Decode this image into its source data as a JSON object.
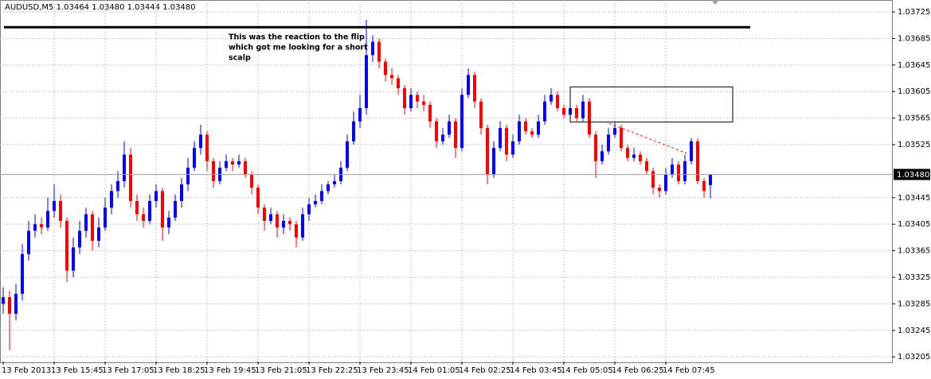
{
  "info": "AUDUSD,M5  1.03464 1.03480 1.03444 1.03480",
  "chart_data": {
    "type": "candlestick",
    "up_color": "#0000ff",
    "down_color": "#ff0000",
    "doji_color": "#00a000",
    "ylim": [
      1.03198,
      1.03743
    ],
    "yticks": [
      1.03725,
      1.03685,
      1.03645,
      1.03605,
      1.03565,
      1.03525,
      1.03445,
      1.03405,
      1.03365,
      1.03325,
      1.03285,
      1.03245,
      1.03205
    ],
    "current_price": {
      "value": 1.0348,
      "label": "1.03480"
    },
    "grid": true,
    "time_labels": [
      "13 Feb 2013",
      "13 Feb 15:45",
      "13 Feb 17:05",
      "13 Feb 18:25",
      "13 Feb 19:45",
      "13 Feb 21:05",
      "13 Feb 22:25",
      "13 Feb 23:45",
      "14 Feb 01:05",
      "14 Feb 02:25",
      "14 Feb 03:45",
      "14 Feb 05:05",
      "14 Feb 06:25",
      "14 Feb 07:45"
    ],
    "annotation": [
      "This was the reaction to the flip",
      "which got me looking for a short",
      "scalp"
    ],
    "horizontal_line": 1.03702,
    "rectangle": {
      "top": 1.03612,
      "bottom": 1.03559
    },
    "trendline": [
      1.03557,
      1.03512
    ],
    "open": [
      1.03285,
      1.03295,
      1.0327,
      1.033,
      1.0336,
      1.03395,
      1.03405,
      1.034,
      1.03425,
      1.0344,
      1.0341,
      1.03335,
      1.0337,
      1.03395,
      1.0342,
      1.0338,
      1.034,
      1.0343,
      1.03455,
      1.0347,
      1.0351,
      1.0344,
      1.0342,
      1.0341,
      1.0344,
      1.03455,
      1.034,
      1.03415,
      1.0344,
      1.03465,
      1.0349,
      1.0352,
      1.0354,
      1.035,
      1.0347,
      1.0349,
      1.035,
      1.03495,
      1.035,
      1.0348,
      1.0346,
      1.0343,
      1.0341,
      1.0342,
      1.034,
      1.0341,
      1.03405,
      1.03385,
      1.0342,
      1.03435,
      1.0344,
      1.03455,
      1.03465,
      1.0347,
      1.0349,
      1.0353,
      1.0356,
      1.0358,
      1.0366,
      1.0368,
      1.0365,
      1.0363,
      1.03625,
      1.0361,
      1.0358,
      1.036,
      1.0359,
      1.03585,
      1.0356,
      1.0353,
      1.0354,
      1.0356,
      1.0352,
      1.036,
      1.0363,
      1.0359,
      1.0355,
      1.0348,
      1.0352,
      1.0355,
      1.0351,
      1.0353,
      1.0356,
      1.03545,
      1.0354,
      1.0356,
      1.0359,
      1.036,
      1.0358,
      1.0357,
      1.0358,
      1.03565,
      1.0359,
      1.0354,
      1.035,
      1.03515,
      1.0354,
      1.0355,
      1.0352,
      1.03505,
      1.0351,
      1.035,
      1.03485,
      1.0346,
      1.03455,
      1.0348,
      1.03495,
      1.0347,
      1.035,
      1.0353,
      1.0347,
      1.03464
    ],
    "high": [
      1.0331,
      1.03305,
      1.03315,
      1.03375,
      1.0341,
      1.0342,
      1.03415,
      1.03445,
      1.03465,
      1.0345,
      1.03415,
      1.03385,
      1.0341,
      1.0343,
      1.03425,
      1.03415,
      1.03445,
      1.03465,
      1.03485,
      1.0353,
      1.0352,
      1.0345,
      1.0343,
      1.0345,
      1.03465,
      1.0346,
      1.03425,
      1.0345,
      1.03475,
      1.03505,
      1.0353,
      1.03555,
      1.03545,
      1.03505,
      1.035,
      1.0351,
      1.03505,
      1.0351,
      1.03505,
      1.03485,
      1.03465,
      1.03435,
      1.0343,
      1.03425,
      1.0342,
      1.03415,
      1.0341,
      1.0343,
      1.03445,
      1.0345,
      1.03465,
      1.0347,
      1.0348,
      1.035,
      1.0354,
      1.03575,
      1.036,
      1.03713,
      1.0369,
      1.03685,
      1.03655,
      1.0364,
      1.0363,
      1.03615,
      1.0361,
      1.03605,
      1.036,
      1.0359,
      1.03565,
      1.0355,
      1.0357,
      1.03565,
      1.0361,
      1.0364,
      1.03635,
      1.03595,
      1.03555,
      1.0353,
      1.0356,
      1.03555,
      1.0354,
      1.0357,
      1.03565,
      1.0355,
      1.0357,
      1.036,
      1.0361,
      1.03605,
      1.03585,
      1.0359,
      1.03585,
      1.036,
      1.03595,
      1.03545,
      1.03525,
      1.0355,
      1.0356,
      1.03555,
      1.03525,
      1.0352,
      1.03515,
      1.03505,
      1.0349,
      1.03465,
      1.0349,
      1.03505,
      1.035,
      1.0351,
      1.03535,
      1.03535,
      1.03475,
      1.0348
    ],
    "low": [
      1.0327,
      1.03215,
      1.0326,
      1.0329,
      1.0335,
      1.03385,
      1.0339,
      1.03395,
      1.03415,
      1.034,
      1.03318,
      1.03325,
      1.0336,
      1.03385,
      1.03365,
      1.0337,
      1.03395,
      1.0342,
      1.03445,
      1.0346,
      1.0343,
      1.0341,
      1.034,
      1.03405,
      1.0343,
      1.0338,
      1.0339,
      1.0341,
      1.0343,
      1.03455,
      1.03485,
      1.0351,
      1.03485,
      1.0346,
      1.03465,
      1.03485,
      1.03485,
      1.0349,
      1.03475,
      1.0345,
      1.0342,
      1.03395,
      1.03405,
      1.03385,
      1.0339,
      1.03395,
      1.0337,
      1.0338,
      1.0341,
      1.0343,
      1.03435,
      1.0345,
      1.0346,
      1.03465,
      1.03485,
      1.03525,
      1.0355,
      1.0357,
      1.0365,
      1.0364,
      1.0362,
      1.03615,
      1.036,
      1.0357,
      1.03575,
      1.0358,
      1.03575,
      1.0355,
      1.0352,
      1.03525,
      1.03535,
      1.03505,
      1.03515,
      1.03595,
      1.0358,
      1.0354,
      1.03465,
      1.03475,
      1.03515,
      1.035,
      1.03505,
      1.03525,
      1.0354,
      1.03535,
      1.03535,
      1.03555,
      1.03585,
      1.03575,
      1.03565,
      1.03565,
      1.0356,
      1.0356,
      1.03535,
      1.03475,
      1.03495,
      1.0351,
      1.03535,
      1.03515,
      1.035,
      1.035,
      1.03495,
      1.0348,
      1.0345,
      1.03445,
      1.0345,
      1.03475,
      1.03465,
      1.03465,
      1.03495,
      1.03465,
      1.03445,
      1.03444
    ],
    "close": [
      1.03295,
      1.0327,
      1.033,
      1.0336,
      1.03395,
      1.03405,
      1.034,
      1.03425,
      1.0344,
      1.0341,
      1.03335,
      1.0337,
      1.03395,
      1.0342,
      1.0338,
      1.034,
      1.0343,
      1.03455,
      1.0347,
      1.0351,
      1.0344,
      1.0342,
      1.0341,
      1.0344,
      1.03455,
      1.034,
      1.03415,
      1.0344,
      1.03465,
      1.0349,
      1.0352,
      1.0354,
      1.035,
      1.0347,
      1.0349,
      1.035,
      1.03495,
      1.035,
      1.0348,
      1.0346,
      1.0343,
      1.0341,
      1.0342,
      1.034,
      1.0341,
      1.03405,
      1.03385,
      1.0342,
      1.03435,
      1.0344,
      1.03455,
      1.03465,
      1.0347,
      1.0349,
      1.0353,
      1.0356,
      1.0358,
      1.0366,
      1.0368,
      1.0365,
      1.0363,
      1.03625,
      1.0361,
      1.0358,
      1.036,
      1.0359,
      1.03585,
      1.0356,
      1.0353,
      1.0354,
      1.0356,
      1.0352,
      1.036,
      1.0363,
      1.0359,
      1.0355,
      1.0348,
      1.0352,
      1.0355,
      1.0351,
      1.0353,
      1.0356,
      1.03545,
      1.0354,
      1.0356,
      1.0359,
      1.036,
      1.0358,
      1.0357,
      1.0358,
      1.03565,
      1.0359,
      1.0354,
      1.035,
      1.03515,
      1.0354,
      1.0355,
      1.0352,
      1.03505,
      1.0351,
      1.035,
      1.03485,
      1.0346,
      1.03455,
      1.0348,
      1.03495,
      1.0347,
      1.035,
      1.0353,
      1.0347,
      1.03455,
      1.0348
    ]
  }
}
